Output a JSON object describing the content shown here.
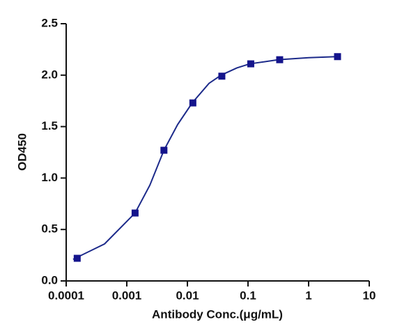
{
  "chart_data": {
    "type": "scatter",
    "xlabel": "Antibody Conc.(μg/mL)",
    "ylabel": "OD450",
    "xlog": true,
    "xlim": [
      0.0001,
      10
    ],
    "xticks": [
      0.0001,
      0.001,
      0.01,
      0.1,
      1,
      10
    ],
    "ylim": [
      0,
      2.5
    ],
    "yticks": [
      {
        "value": 0,
        "label": "0.0"
      },
      0.5,
      {
        "value": 1,
        "label": "1.0"
      },
      1.5,
      {
        "value": 2,
        "label": "2.0"
      },
      2.5
    ],
    "series": [
      {
        "type": "scatter",
        "color": "#14148c",
        "x": [
          0.000152,
          0.00137,
          0.0041,
          0.0123,
          0.037,
          0.111,
          0.333,
          3
        ],
        "values": [
          0.22,
          0.66,
          1.27,
          1.73,
          1.99,
          2.11,
          2.15,
          2.18
        ]
      },
      {
        "type": "line",
        "color": "#1c2a8a",
        "x": [
          0.00013,
          0.00043,
          0.00137,
          0.0024,
          0.0041,
          0.0069,
          0.012,
          0.0227,
          0.036,
          0.0655,
          0.107,
          0.32,
          1,
          2.9
        ],
        "values": [
          0.21,
          0.36,
          0.66,
          0.93,
          1.27,
          1.52,
          1.73,
          1.92,
          2.0,
          2.07,
          2.11,
          2.15,
          2.17,
          2.18
        ]
      }
    ]
  }
}
